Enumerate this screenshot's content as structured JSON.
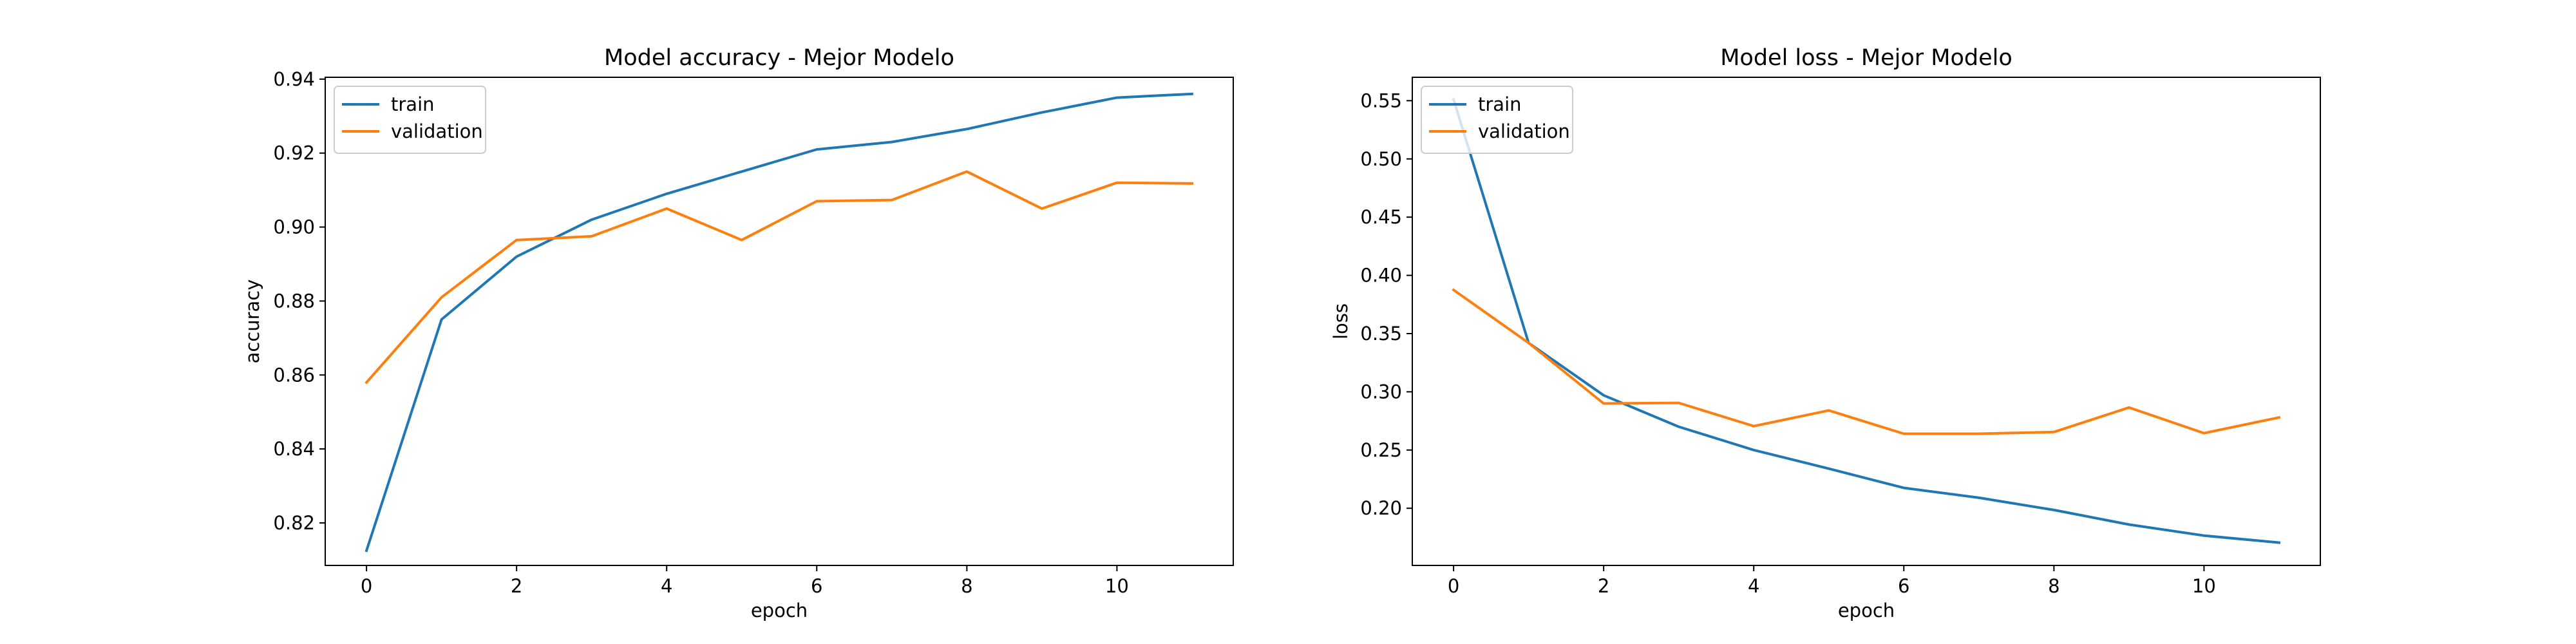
{
  "chart_data": [
    {
      "type": "line",
      "title": "Model accuracy - Mejor Modelo",
      "xlabel": "epoch",
      "ylabel": "accuracy",
      "x": [
        0,
        1,
        2,
        3,
        4,
        5,
        6,
        7,
        8,
        9,
        10,
        11
      ],
      "xlim": [
        -0.55,
        11.55
      ],
      "ylim": [
        0.8085,
        0.9405
      ],
      "xticks": [
        0,
        2,
        4,
        6,
        8,
        10
      ],
      "yticks": [
        0.82,
        0.84,
        0.86,
        0.88,
        0.9,
        0.92,
        0.94
      ],
      "ytick_labels": [
        "0.82",
        "0.84",
        "0.86",
        "0.88",
        "0.90",
        "0.92",
        "0.94"
      ],
      "grid": false,
      "legend_placement": "upper-left",
      "series": [
        {
          "name": "train",
          "color": "#1f77b4",
          "values": [
            0.8125,
            0.875,
            0.892,
            0.902,
            0.909,
            0.915,
            0.921,
            0.923,
            0.9265,
            0.931,
            0.935,
            0.936
          ]
        },
        {
          "name": "validation",
          "color": "#ff7f0e",
          "values": [
            0.858,
            0.881,
            0.8965,
            0.8975,
            0.905,
            0.8965,
            0.907,
            0.9073,
            0.915,
            0.905,
            0.912,
            0.9118
          ]
        }
      ]
    },
    {
      "type": "line",
      "title": "Model loss - Mejor Modelo",
      "xlabel": "epoch",
      "ylabel": "loss",
      "x": [
        0,
        1,
        2,
        3,
        4,
        5,
        6,
        7,
        8,
        9,
        10,
        11
      ],
      "xlim": [
        -0.55,
        11.55
      ],
      "ylim": [
        0.1509,
        0.5701
      ],
      "xticks": [
        0,
        2,
        4,
        6,
        8,
        10
      ],
      "yticks": [
        0.2,
        0.25,
        0.3,
        0.35,
        0.4,
        0.45,
        0.5,
        0.55
      ],
      "ytick_labels": [
        "0.20",
        "0.25",
        "0.30",
        "0.35",
        "0.40",
        "0.45",
        "0.50",
        "0.55"
      ],
      "grid": false,
      "legend_placement": "upper-left",
      "series": [
        {
          "name": "train",
          "color": "#1f77b4",
          "values": [
            0.551,
            0.342,
            0.297,
            0.27,
            0.25,
            0.234,
            0.2175,
            0.209,
            0.1985,
            0.186,
            0.1765,
            0.1705
          ]
        },
        {
          "name": "validation",
          "color": "#ff7f0e",
          "values": [
            0.3875,
            0.342,
            0.29,
            0.2905,
            0.2705,
            0.284,
            0.264,
            0.264,
            0.2655,
            0.2865,
            0.2645,
            0.278
          ]
        }
      ]
    }
  ]
}
